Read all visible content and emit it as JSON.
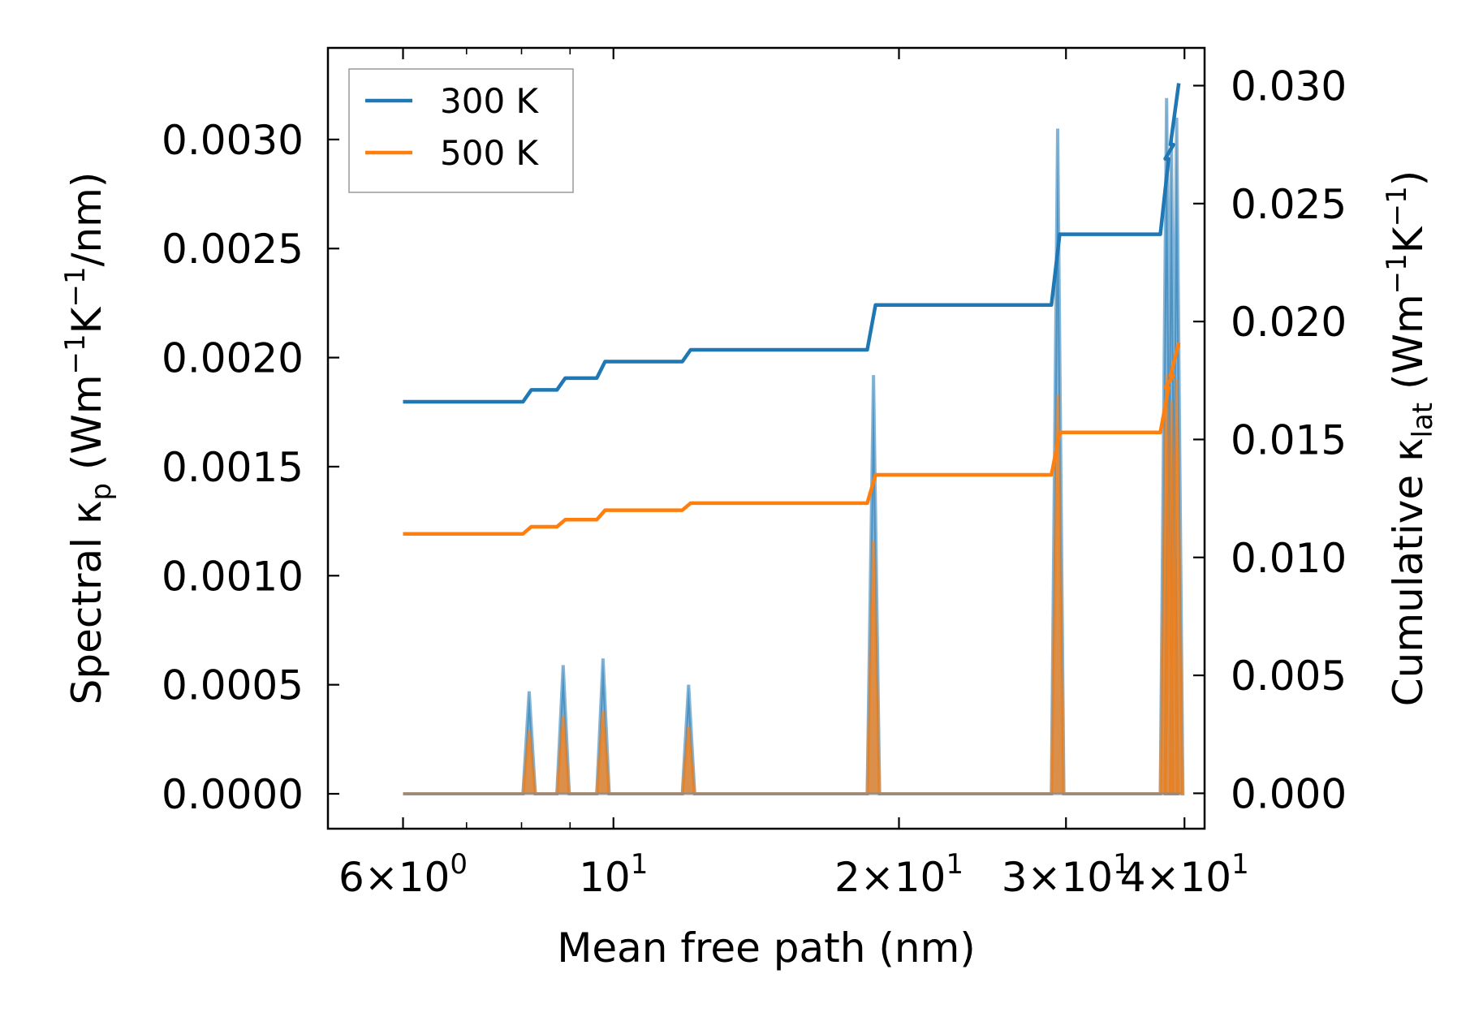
{
  "chart_data": {
    "type": "line",
    "xlabel": "Mean free path (nm)",
    "ylabel": "Spectral κ_p (Wm⁻¹K⁻¹/nm)",
    "ylabel_parts": {
      "pre": "Spectral κ",
      "sub": "p",
      "post1": " (Wm",
      "sup1": "−1",
      "post2": "K",
      "sup2": "−1",
      "post3": "/nm)"
    },
    "y2label": "Cumulative κ_lat (Wm⁻¹K⁻¹)",
    "y2label_parts": {
      "pre": "Cumulative κ",
      "sub": "lat",
      "post1": " (Wm",
      "sup1": "−1",
      "post2": "K",
      "sup2": "−1",
      "post3": ")"
    },
    "xscale": "log",
    "xlim": [
      5.0,
      42.0
    ],
    "ylim": [
      -0.00016,
      0.00342
    ],
    "y2lim": [
      -0.0015,
      0.0316
    ],
    "x_ticks": [
      {
        "value": 6,
        "base": "6",
        "mantissa": "10",
        "exp": "0"
      },
      {
        "value": 10,
        "base": "",
        "mantissa": "10",
        "exp": "1"
      },
      {
        "value": 20,
        "base": "2",
        "mantissa": "10",
        "exp": "1"
      },
      {
        "value": 30,
        "base": "3",
        "mantissa": "10",
        "exp": "1"
      },
      {
        "value": 40,
        "base": "4",
        "mantissa": "10",
        "exp": "1"
      }
    ],
    "x_minor_ticks": [
      7,
      8,
      9
    ],
    "y_ticks": [
      {
        "value": 0.0,
        "label": "0.0000"
      },
      {
        "value": 0.0005,
        "label": "0.0005"
      },
      {
        "value": 0.001,
        "label": "0.0010"
      },
      {
        "value": 0.0015,
        "label": "0.0015"
      },
      {
        "value": 0.002,
        "label": "0.0020"
      },
      {
        "value": 0.0025,
        "label": "0.0025"
      },
      {
        "value": 0.003,
        "label": "0.0030"
      }
    ],
    "y2_ticks": [
      {
        "value": 0.0,
        "label": "0.000"
      },
      {
        "value": 0.005,
        "label": "0.005"
      },
      {
        "value": 0.01,
        "label": "0.010"
      },
      {
        "value": 0.015,
        "label": "0.015"
      },
      {
        "value": 0.02,
        "label": "0.020"
      },
      {
        "value": 0.025,
        "label": "0.025"
      },
      {
        "value": 0.03,
        "label": "0.030"
      }
    ],
    "legend": {
      "placement": "top-left",
      "entries": [
        "300 K",
        "500 K"
      ]
    },
    "grid": false,
    "spectral_series": [
      {
        "name": "300 K",
        "color": "#1f77b4",
        "peaks": [
          {
            "x": 8.15,
            "y": 0.00047
          },
          {
            "x": 8.85,
            "y": 0.00059
          },
          {
            "x": 9.75,
            "y": 0.00062
          },
          {
            "x": 12.0,
            "y": 0.0005
          },
          {
            "x": 18.8,
            "y": 0.00192
          },
          {
            "x": 29.4,
            "y": 0.00305
          },
          {
            "x": 38.3,
            "y": 0.00319
          },
          {
            "x": 38.75,
            "y": 0.003
          },
          {
            "x": 39.25,
            "y": 0.0031
          }
        ]
      },
      {
        "name": "500 K",
        "color": "#ff7f0e",
        "peaks": [
          {
            "x": 8.15,
            "y": 0.00029
          },
          {
            "x": 8.85,
            "y": 0.00036
          },
          {
            "x": 9.75,
            "y": 0.00038
          },
          {
            "x": 12.0,
            "y": 0.00031
          },
          {
            "x": 18.8,
            "y": 0.00116
          },
          {
            "x": 29.4,
            "y": 0.00183
          },
          {
            "x": 38.3,
            "y": 0.00192
          },
          {
            "x": 38.75,
            "y": 0.0018
          },
          {
            "x": 39.25,
            "y": 0.0019
          }
        ]
      }
    ],
    "cumulative_series": [
      {
        "name": "300 K",
        "color": "#1f77b4",
        "steps": [
          {
            "x": 6.0,
            "y": 0.0166
          },
          {
            "x": 8.15,
            "y": 0.0171
          },
          {
            "x": 8.85,
            "y": 0.0176
          },
          {
            "x": 9.75,
            "y": 0.0183
          },
          {
            "x": 12.0,
            "y": 0.0188
          },
          {
            "x": 18.8,
            "y": 0.0207
          },
          {
            "x": 29.4,
            "y": 0.0237
          },
          {
            "x": 38.3,
            "y": 0.0269
          },
          {
            "x": 38.75,
            "y": 0.0275
          },
          {
            "x": 39.25,
            "y": 0.0301
          }
        ]
      },
      {
        "name": "500 K",
        "color": "#ff7f0e",
        "steps": [
          {
            "x": 6.0,
            "y": 0.011
          },
          {
            "x": 8.15,
            "y": 0.0113
          },
          {
            "x": 8.85,
            "y": 0.0116
          },
          {
            "x": 9.75,
            "y": 0.012
          },
          {
            "x": 12.0,
            "y": 0.0123
          },
          {
            "x": 18.8,
            "y": 0.0135
          },
          {
            "x": 29.4,
            "y": 0.0153
          },
          {
            "x": 38.3,
            "y": 0.0172
          },
          {
            "x": 38.75,
            "y": 0.0177
          },
          {
            "x": 39.25,
            "y": 0.0191
          }
        ]
      }
    ]
  }
}
